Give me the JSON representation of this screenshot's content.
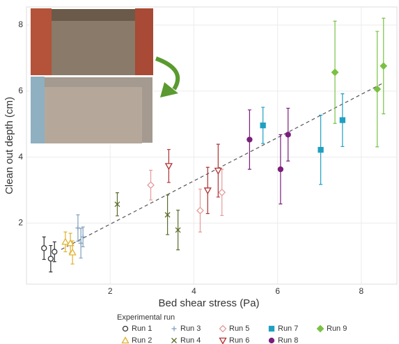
{
  "chart_data": {
    "type": "scatter",
    "x_label": "Bed shear stress (Pa)",
    "y_label": "Clean out depth (cm)",
    "xlim": [
      0,
      8.85
    ],
    "ylim": [
      0.15,
      8.55
    ],
    "xticks": [
      2,
      4,
      6,
      8
    ],
    "yticks": [
      2,
      4,
      6,
      8
    ],
    "grid": true,
    "legend_title": "Experimental run",
    "legend_position": "bottom",
    "trend": {
      "x": [
        0.83,
        8.5
      ],
      "y": [
        1.2,
        6.23
      ],
      "color": "#555555"
    },
    "series": [
      {
        "name": "Run 1",
        "color": "#333333",
        "marker": "circle-open",
        "x": [
          0.42,
          0.58,
          0.67
        ],
        "values": [
          1.24,
          0.92,
          1.13
        ],
        "errors": [
          0.34,
          0.4,
          0.3
        ]
      },
      {
        "name": "Run 2",
        "color": "#e0b030",
        "marker": "triangle-open",
        "x": [
          0.93,
          1.05,
          1.1
        ],
        "values": [
          1.43,
          1.39,
          1.11
        ],
        "errors": [
          0.3,
          0.3,
          0.35
        ]
      },
      {
        "name": "Run 3",
        "color": "#7f9fbf",
        "marker": "plus",
        "x": [
          1.23,
          1.3,
          1.35
        ],
        "values": [
          1.85,
          1.39,
          1.58
        ],
        "errors": [
          0.4,
          0.45,
          0.3
        ]
      },
      {
        "name": "Run 4",
        "color": "#5a6b2a",
        "marker": "cross",
        "x": [
          2.17,
          3.37,
          3.62
        ],
        "values": [
          2.57,
          2.25,
          1.79
        ],
        "errors": [
          0.35,
          0.6,
          0.6
        ]
      },
      {
        "name": "Run 5",
        "color": "#e59a9a",
        "marker": "diamond-open",
        "x": [
          2.97,
          4.15,
          4.67
        ],
        "values": [
          3.15,
          2.38,
          2.93
        ],
        "errors": [
          0.45,
          0.65,
          0.7
        ]
      },
      {
        "name": "Run 6",
        "color": "#b03030",
        "marker": "triangle-down-open",
        "x": [
          3.4,
          4.33,
          4.58
        ],
        "values": [
          3.73,
          2.99,
          3.59
        ],
        "errors": [
          0.5,
          0.7,
          0.8
        ]
      },
      {
        "name": "Run 7",
        "color": "#20a0c0",
        "marker": "square",
        "x": [
          5.65,
          7.03,
          7.55
        ],
        "values": [
          4.96,
          4.22,
          5.12
        ],
        "errors": [
          0.55,
          1.05,
          0.8
        ]
      },
      {
        "name": "Run 8",
        "color": "#7a1f7a",
        "marker": "circle",
        "x": [
          5.33,
          6.07,
          6.25
        ],
        "values": [
          4.53,
          3.63,
          4.68
        ],
        "errors": [
          0.9,
          1.05,
          0.8
        ]
      },
      {
        "name": "Run 9",
        "color": "#7ac143",
        "marker": "diamond",
        "x": [
          7.37,
          8.38,
          8.53
        ],
        "values": [
          6.57,
          6.06,
          6.76
        ],
        "errors": [
          1.55,
          1.75,
          1.45
        ]
      }
    ]
  }
}
